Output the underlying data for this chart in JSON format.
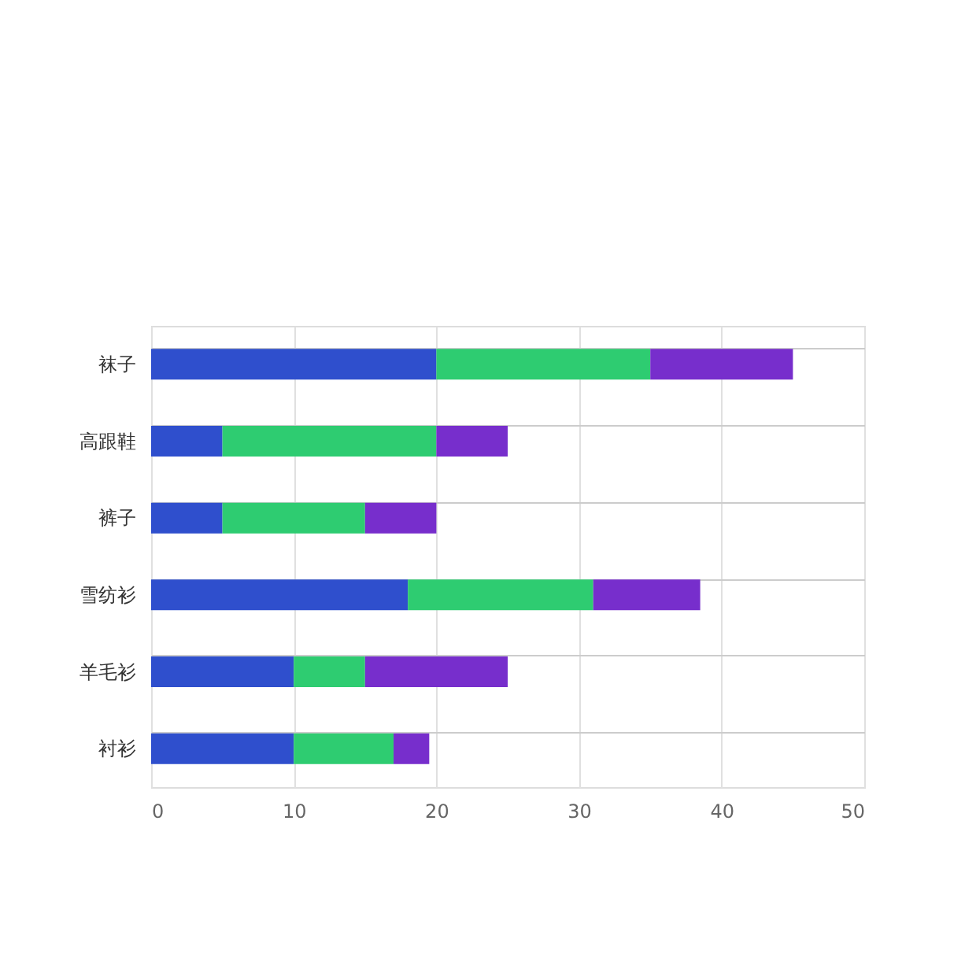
{
  "chart_data": {
    "type": "bar",
    "orientation": "horizontal",
    "stacked": true,
    "categories": [
      "袜子",
      "高跟鞋",
      "裤子",
      "雪纺衫",
      "羊毛衫",
      "衬衫"
    ],
    "series": [
      {
        "color": "#2f4fcd",
        "values": [
          20,
          5,
          5,
          18,
          10,
          10
        ]
      },
      {
        "color": "#2ecc71",
        "values": [
          15,
          15,
          10,
          13,
          5,
          7
        ]
      },
      {
        "color": "#772ecc",
        "values": [
          10,
          5,
          5,
          7.5,
          10,
          2.5
        ]
      }
    ],
    "xlim": [
      0,
      50
    ],
    "xticks": [
      0,
      10,
      20,
      30,
      40,
      50
    ],
    "grid": true,
    "legend": false
  }
}
